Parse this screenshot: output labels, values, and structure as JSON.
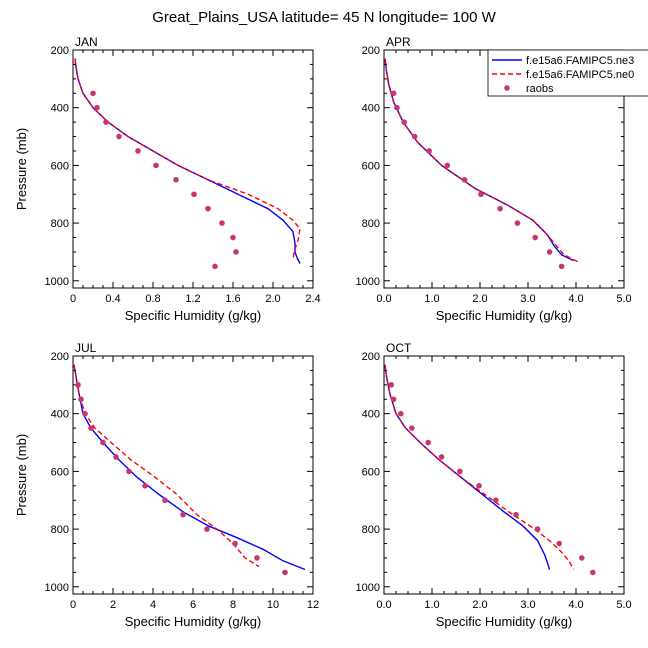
{
  "title": "Great_Plains_USA  latitude= 45 N longitude= 100 W",
  "legend": {
    "entries": [
      {
        "label": "f.e15a6.FAMIPC5.ne3",
        "color": "#0000ff",
        "style": "solid"
      },
      {
        "label": "f.e15a6.FAMIPC5.ne0",
        "color": "#ff0000",
        "style": "dashed"
      },
      {
        "label": "raobs",
        "color": "#c8366e",
        "style": "marker"
      }
    ]
  },
  "chart_data": [
    {
      "type": "line",
      "panel": "JAN",
      "xlabel": "Specific Humidity (g/kg)",
      "ylabel": "Pressure (mb)",
      "xlim": [
        0,
        2.4
      ],
      "ylim": [
        200,
        1025
      ],
      "y_reversed": true,
      "xticks": [
        "0",
        "0.4",
        "0.8",
        "1.2",
        "1.6",
        "2.0",
        "2.4"
      ],
      "yticks": [
        "200",
        "400",
        "600",
        "800",
        "1000"
      ],
      "series": [
        {
          "name": "f.e15a6.FAMIPC5.ne3",
          "color": "#0000ff",
          "style": "solid",
          "points": [
            [
              0.02,
              230
            ],
            [
              0.03,
              260
            ],
            [
              0.05,
              300
            ],
            [
              0.1,
              350
            ],
            [
              0.2,
              400
            ],
            [
              0.35,
              450
            ],
            [
              0.55,
              500
            ],
            [
              0.8,
              550
            ],
            [
              1.05,
              600
            ],
            [
              1.35,
              650
            ],
            [
              1.65,
              700
            ],
            [
              1.95,
              750
            ],
            [
              2.1,
              790
            ],
            [
              2.2,
              830
            ],
            [
              2.22,
              870
            ],
            [
              2.22,
              900
            ],
            [
              2.24,
              920
            ],
            [
              2.27,
              940
            ]
          ]
        },
        {
          "name": "f.e15a6.FAMIPC5.ne0",
          "color": "#ff0000",
          "style": "dashed",
          "points": [
            [
              0.02,
              230
            ],
            [
              0.03,
              260
            ],
            [
              0.05,
              300
            ],
            [
              0.1,
              350
            ],
            [
              0.2,
              400
            ],
            [
              0.35,
              450
            ],
            [
              0.55,
              500
            ],
            [
              0.8,
              550
            ],
            [
              1.05,
              600
            ],
            [
              1.35,
              650
            ],
            [
              1.75,
              700
            ],
            [
              2.05,
              750
            ],
            [
              2.2,
              790
            ],
            [
              2.27,
              820
            ],
            [
              2.25,
              860
            ],
            [
              2.21,
              900
            ],
            [
              2.2,
              930
            ]
          ]
        },
        {
          "name": "raobs",
          "color": "#c8366e",
          "style": "marker",
          "points": [
            [
              0.2,
              350
            ],
            [
              0.24,
              400
            ],
            [
              0.33,
              450
            ],
            [
              0.46,
              500
            ],
            [
              0.65,
              550
            ],
            [
              0.83,
              600
            ],
            [
              1.03,
              650
            ],
            [
              1.21,
              700
            ],
            [
              1.35,
              750
            ],
            [
              1.49,
              800
            ],
            [
              1.6,
              850
            ],
            [
              1.63,
              900
            ],
            [
              1.42,
              950
            ]
          ]
        }
      ]
    },
    {
      "type": "line",
      "panel": "APR",
      "xlabel": "Specific Humidity (g/kg)",
      "ylabel": "",
      "xlim": [
        0,
        5
      ],
      "ylim": [
        200,
        1025
      ],
      "y_reversed": true,
      "xticks": [
        "0.0",
        "1.0",
        "2.0",
        "3.0",
        "4.0",
        "5.0"
      ],
      "yticks": [
        "200",
        "400",
        "600",
        "800",
        "1000"
      ],
      "series": [
        {
          "name": "f.e15a6.FAMIPC5.ne3",
          "color": "#0000ff",
          "style": "solid",
          "points": [
            [
              0.02,
              230
            ],
            [
              0.05,
              270
            ],
            [
              0.1,
              320
            ],
            [
              0.2,
              380
            ],
            [
              0.4,
              450
            ],
            [
              0.7,
              520
            ],
            [
              1.2,
              600
            ],
            [
              1.9,
              680
            ],
            [
              2.6,
              740
            ],
            [
              3.1,
              790
            ],
            [
              3.4,
              840
            ],
            [
              3.55,
              880
            ],
            [
              3.7,
              910
            ],
            [
              3.95,
              930
            ]
          ]
        },
        {
          "name": "f.e15a6.FAMIPC5.ne0",
          "color": "#ff0000",
          "style": "dashed",
          "points": [
            [
              0.02,
              230
            ],
            [
              0.05,
              270
            ],
            [
              0.1,
              320
            ],
            [
              0.2,
              380
            ],
            [
              0.4,
              450
            ],
            [
              0.7,
              520
            ],
            [
              1.2,
              600
            ],
            [
              1.9,
              680
            ],
            [
              2.6,
              740
            ],
            [
              3.1,
              790
            ],
            [
              3.4,
              840
            ],
            [
              3.6,
              880
            ],
            [
              3.75,
              910
            ],
            [
              4.05,
              935
            ]
          ]
        },
        {
          "name": "raobs",
          "color": "#c8366e",
          "style": "marker",
          "points": [
            [
              0.2,
              350
            ],
            [
              0.27,
              400
            ],
            [
              0.42,
              450
            ],
            [
              0.64,
              500
            ],
            [
              0.94,
              550
            ],
            [
              1.32,
              600
            ],
            [
              1.68,
              650
            ],
            [
              2.02,
              700
            ],
            [
              2.42,
              750
            ],
            [
              2.78,
              800
            ],
            [
              3.15,
              850
            ],
            [
              3.45,
              900
            ],
            [
              3.7,
              950
            ]
          ]
        }
      ]
    },
    {
      "type": "line",
      "panel": "JUL",
      "xlabel": "Specific Humidity (g/kg)",
      "ylabel": "Pressure (mb)",
      "xlim": [
        0,
        12
      ],
      "ylim": [
        200,
        1025
      ],
      "y_reversed": true,
      "xticks": [
        "0",
        "2",
        "4",
        "6",
        "8",
        "10",
        "12"
      ],
      "yticks": [
        "200",
        "400",
        "600",
        "800",
        "1000"
      ],
      "series": [
        {
          "name": "f.e15a6.FAMIPC5.ne3",
          "color": "#0000ff",
          "style": "solid",
          "points": [
            [
              0.05,
              230
            ],
            [
              0.15,
              270
            ],
            [
              0.3,
              330
            ],
            [
              0.5,
              400
            ],
            [
              0.9,
              450
            ],
            [
              1.5,
              500
            ],
            [
              2.3,
              560
            ],
            [
              3.2,
              620
            ],
            [
              4.3,
              680
            ],
            [
              5.5,
              740
            ],
            [
              6.8,
              790
            ],
            [
              8.2,
              830
            ],
            [
              9.5,
              870
            ],
            [
              10.5,
              910
            ],
            [
              11.6,
              940
            ]
          ]
        },
        {
          "name": "f.e15a6.FAMIPC5.ne0",
          "color": "#ff0000",
          "style": "dashed",
          "points": [
            [
              0.05,
              230
            ],
            [
              0.15,
              270
            ],
            [
              0.3,
              330
            ],
            [
              0.6,
              400
            ],
            [
              1.1,
              450
            ],
            [
              1.9,
              500
            ],
            [
              2.9,
              560
            ],
            [
              4.1,
              620
            ],
            [
              5.2,
              680
            ],
            [
              6.2,
              750
            ],
            [
              7.2,
              800
            ],
            [
              8.0,
              850
            ],
            [
              8.6,
              900
            ],
            [
              9.3,
              930
            ]
          ]
        },
        {
          "name": "raobs",
          "color": "#c8366e",
          "style": "marker",
          "points": [
            [
              0.25,
              300
            ],
            [
              0.4,
              350
            ],
            [
              0.6,
              400
            ],
            [
              0.9,
              450
            ],
            [
              1.5,
              500
            ],
            [
              2.15,
              550
            ],
            [
              2.8,
              600
            ],
            [
              3.6,
              650
            ],
            [
              4.6,
              700
            ],
            [
              5.5,
              750
            ],
            [
              6.7,
              800
            ],
            [
              8.1,
              850
            ],
            [
              9.2,
              900
            ],
            [
              10.6,
              950
            ]
          ]
        }
      ]
    },
    {
      "type": "line",
      "panel": "OCT",
      "xlabel": "Specific Humidity (g/kg)",
      "ylabel": "",
      "xlim": [
        0,
        5
      ],
      "ylim": [
        200,
        1025
      ],
      "y_reversed": true,
      "xticks": [
        "0.0",
        "1.0",
        "2.0",
        "3.0",
        "4.0",
        "5.0"
      ],
      "yticks": [
        "200",
        "400",
        "600",
        "800",
        "1000"
      ],
      "series": [
        {
          "name": "f.e15a6.FAMIPC5.ne3",
          "color": "#0000ff",
          "style": "solid",
          "points": [
            [
              0.02,
              230
            ],
            [
              0.05,
              270
            ],
            [
              0.12,
              330
            ],
            [
              0.25,
              400
            ],
            [
              0.45,
              450
            ],
            [
              0.75,
              500
            ],
            [
              1.15,
              560
            ],
            [
              1.6,
              620
            ],
            [
              2.05,
              680
            ],
            [
              2.5,
              740
            ],
            [
              2.9,
              790
            ],
            [
              3.2,
              840
            ],
            [
              3.35,
              890
            ],
            [
              3.45,
              940
            ]
          ]
        },
        {
          "name": "f.e15a6.FAMIPC5.ne0",
          "color": "#ff0000",
          "style": "dashed",
          "points": [
            [
              0.02,
              230
            ],
            [
              0.05,
              270
            ],
            [
              0.12,
              330
            ],
            [
              0.25,
              400
            ],
            [
              0.45,
              450
            ],
            [
              0.75,
              500
            ],
            [
              1.15,
              560
            ],
            [
              1.6,
              620
            ],
            [
              2.1,
              680
            ],
            [
              2.6,
              740
            ],
            [
              3.05,
              790
            ],
            [
              3.45,
              840
            ],
            [
              3.7,
              880
            ],
            [
              3.85,
              910
            ],
            [
              3.95,
              940
            ]
          ]
        },
        {
          "name": "raobs",
          "color": "#c8366e",
          "style": "marker",
          "points": [
            [
              0.15,
              300
            ],
            [
              0.2,
              350
            ],
            [
              0.35,
              400
            ],
            [
              0.58,
              450
            ],
            [
              0.92,
              500
            ],
            [
              1.2,
              550
            ],
            [
              1.58,
              600
            ],
            [
              1.98,
              650
            ],
            [
              2.33,
              700
            ],
            [
              2.75,
              750
            ],
            [
              3.2,
              800
            ],
            [
              3.65,
              850
            ],
            [
              4.12,
              900
            ],
            [
              4.35,
              950
            ]
          ]
        }
      ]
    }
  ]
}
